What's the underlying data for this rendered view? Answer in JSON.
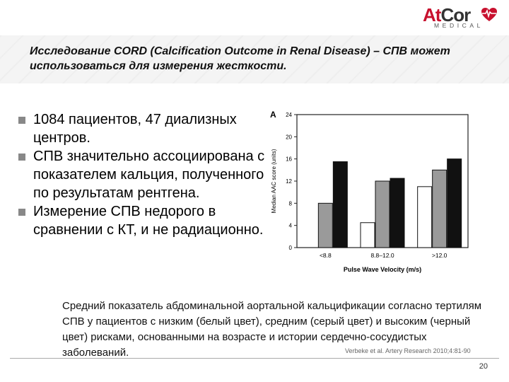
{
  "logo": {
    "main": "AtCor",
    "sub": "MEDICAL"
  },
  "slide_title": "Исследование CORD (Calcification Outcome in Renal Disease) – СПВ может использоваться для измерения жесткости.",
  "bullets": [
    "1084 пациентов, 47 диализных центров.",
    "СПВ значительно ассоциирована с показателем кальция, полученного по результатам рентгена.",
    "Измерение СПВ недорого в сравнении с КТ, и не радиационно."
  ],
  "caption": "Средний показатель абдоминальной аортальной кальцификации согласно тертилям СПВ у пациентов с низким (белый цвет), средним (серый цвет) и высоким (черный цвет) рисками, основанными на возрасте и истории сердечно-сосудистых заболеваний.",
  "citation": "Verbeke et al. Artery Research 2010;4:81-90",
  "page_number": "20",
  "colors": {
    "low": "#ffffff",
    "medium": "#9a9a9a",
    "high": "#111111",
    "logo_accent": "#c8102e"
  },
  "chart_data": {
    "type": "bar",
    "panel_label": "A",
    "categories": [
      "<8.8",
      "8.8–12.0",
      ">12.0"
    ],
    "xlabel": "Pulse Wave Velocity (m/s)",
    "ylabel": "Median AAC score (units)",
    "ylim": [
      0,
      24
    ],
    "yticks": [
      0,
      4,
      8,
      12,
      16,
      20,
      24
    ],
    "series": [
      {
        "name": "low",
        "values": [
          0,
          4.5,
          11
        ]
      },
      {
        "name": "medium",
        "values": [
          8,
          12,
          14
        ]
      },
      {
        "name": "high",
        "values": [
          15.5,
          12.5,
          16
        ]
      }
    ]
  }
}
